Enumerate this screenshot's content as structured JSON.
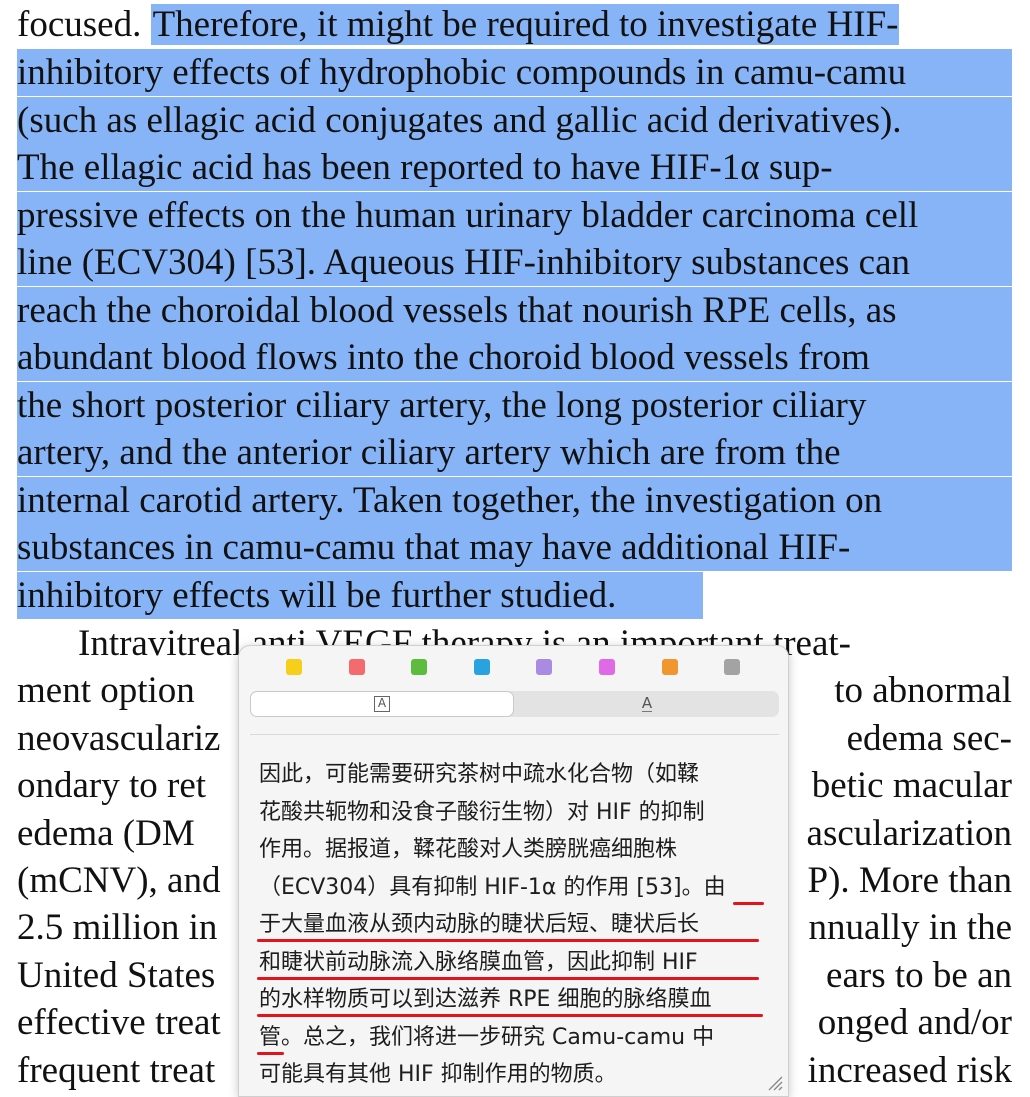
{
  "document": {
    "highlighted_lines": [
      "inhibitory effects of hydrophobic compounds in camu-camu",
      "(such as ellagic acid conjugates and gallic acid derivatives).",
      "The ellagic acid has been reported to have HIF-1α sup-",
      "pressive effects on the human urinary bladder carcinoma cell",
      "line (ECV304) [53]. Aqueous HIF-inhibitory substances can",
      "reach the choroidal blood vessels that nourish RPE cells, as",
      "abundant blood flows into the choroid blood vessels from",
      "the short posterior ciliary artery, the long posterior ciliary",
      "artery, and the anterior ciliary artery which are from the",
      "internal carotid artery. Taken together, the investigation on",
      "substances in camu-camu that may have additional HIF-",
      "inhibitory effects will be further studied."
    ],
    "first_line_plain": "focused.",
    "first_line_highlight": "Therefore, it might be required to investigate HIF-",
    "para2_lines": [
      {
        "left": "Intravitreal anti VEGF therapy is an important treat-",
        "right": ""
      },
      {
        "left": "ment option",
        "right": "to abnormal"
      },
      {
        "left": "neovasculariz",
        "right": "edema sec-"
      },
      {
        "left": "ondary to ret",
        "right": "betic macular"
      },
      {
        "left": "edema (DM",
        "right": "ascularization"
      },
      {
        "left": "(mCNV), and",
        "right": "P). More than"
      },
      {
        "left": "2.5 million in",
        "right": "nnually in the"
      },
      {
        "left": "United States",
        "right": "ears to be an"
      },
      {
        "left": "effective treat",
        "right": "onged and/or"
      },
      {
        "left": "frequent treat",
        "right": "increased risk"
      }
    ]
  },
  "popup": {
    "highlight_colors": [
      "#f5cf1a",
      "#f36a6f",
      "#5cbc3e",
      "#29a3e0",
      "#a98be3",
      "#e06ae6",
      "#f0962e",
      "#a3a3a3"
    ],
    "segment": {
      "left_icon": "A",
      "right_icon": "A",
      "active": "left"
    },
    "translation_lines": [
      "因此，可能需要研究茶树中疏水化合物（如鞣",
      "花酸共轭物和没食子酸衍生物）对 HIF 的抑制",
      "作用。据报道，鞣花酸对人类膀胱癌细胞株",
      "（ECV304）具有抑制 HIF-1α 的作用 [53]。由",
      "于大量血液从颈内动脉的睫状后短、睫状后长",
      "和睫状前动脉流入脉络膜血管，因此抑制 HIF",
      "的水样物质可以到达滋养 RPE 细胞的脉络膜血",
      "管。总之，我们将进一步研究 Camu-camu 中",
      "可能具有其他 HIF 抑制作用的物质。"
    ]
  }
}
